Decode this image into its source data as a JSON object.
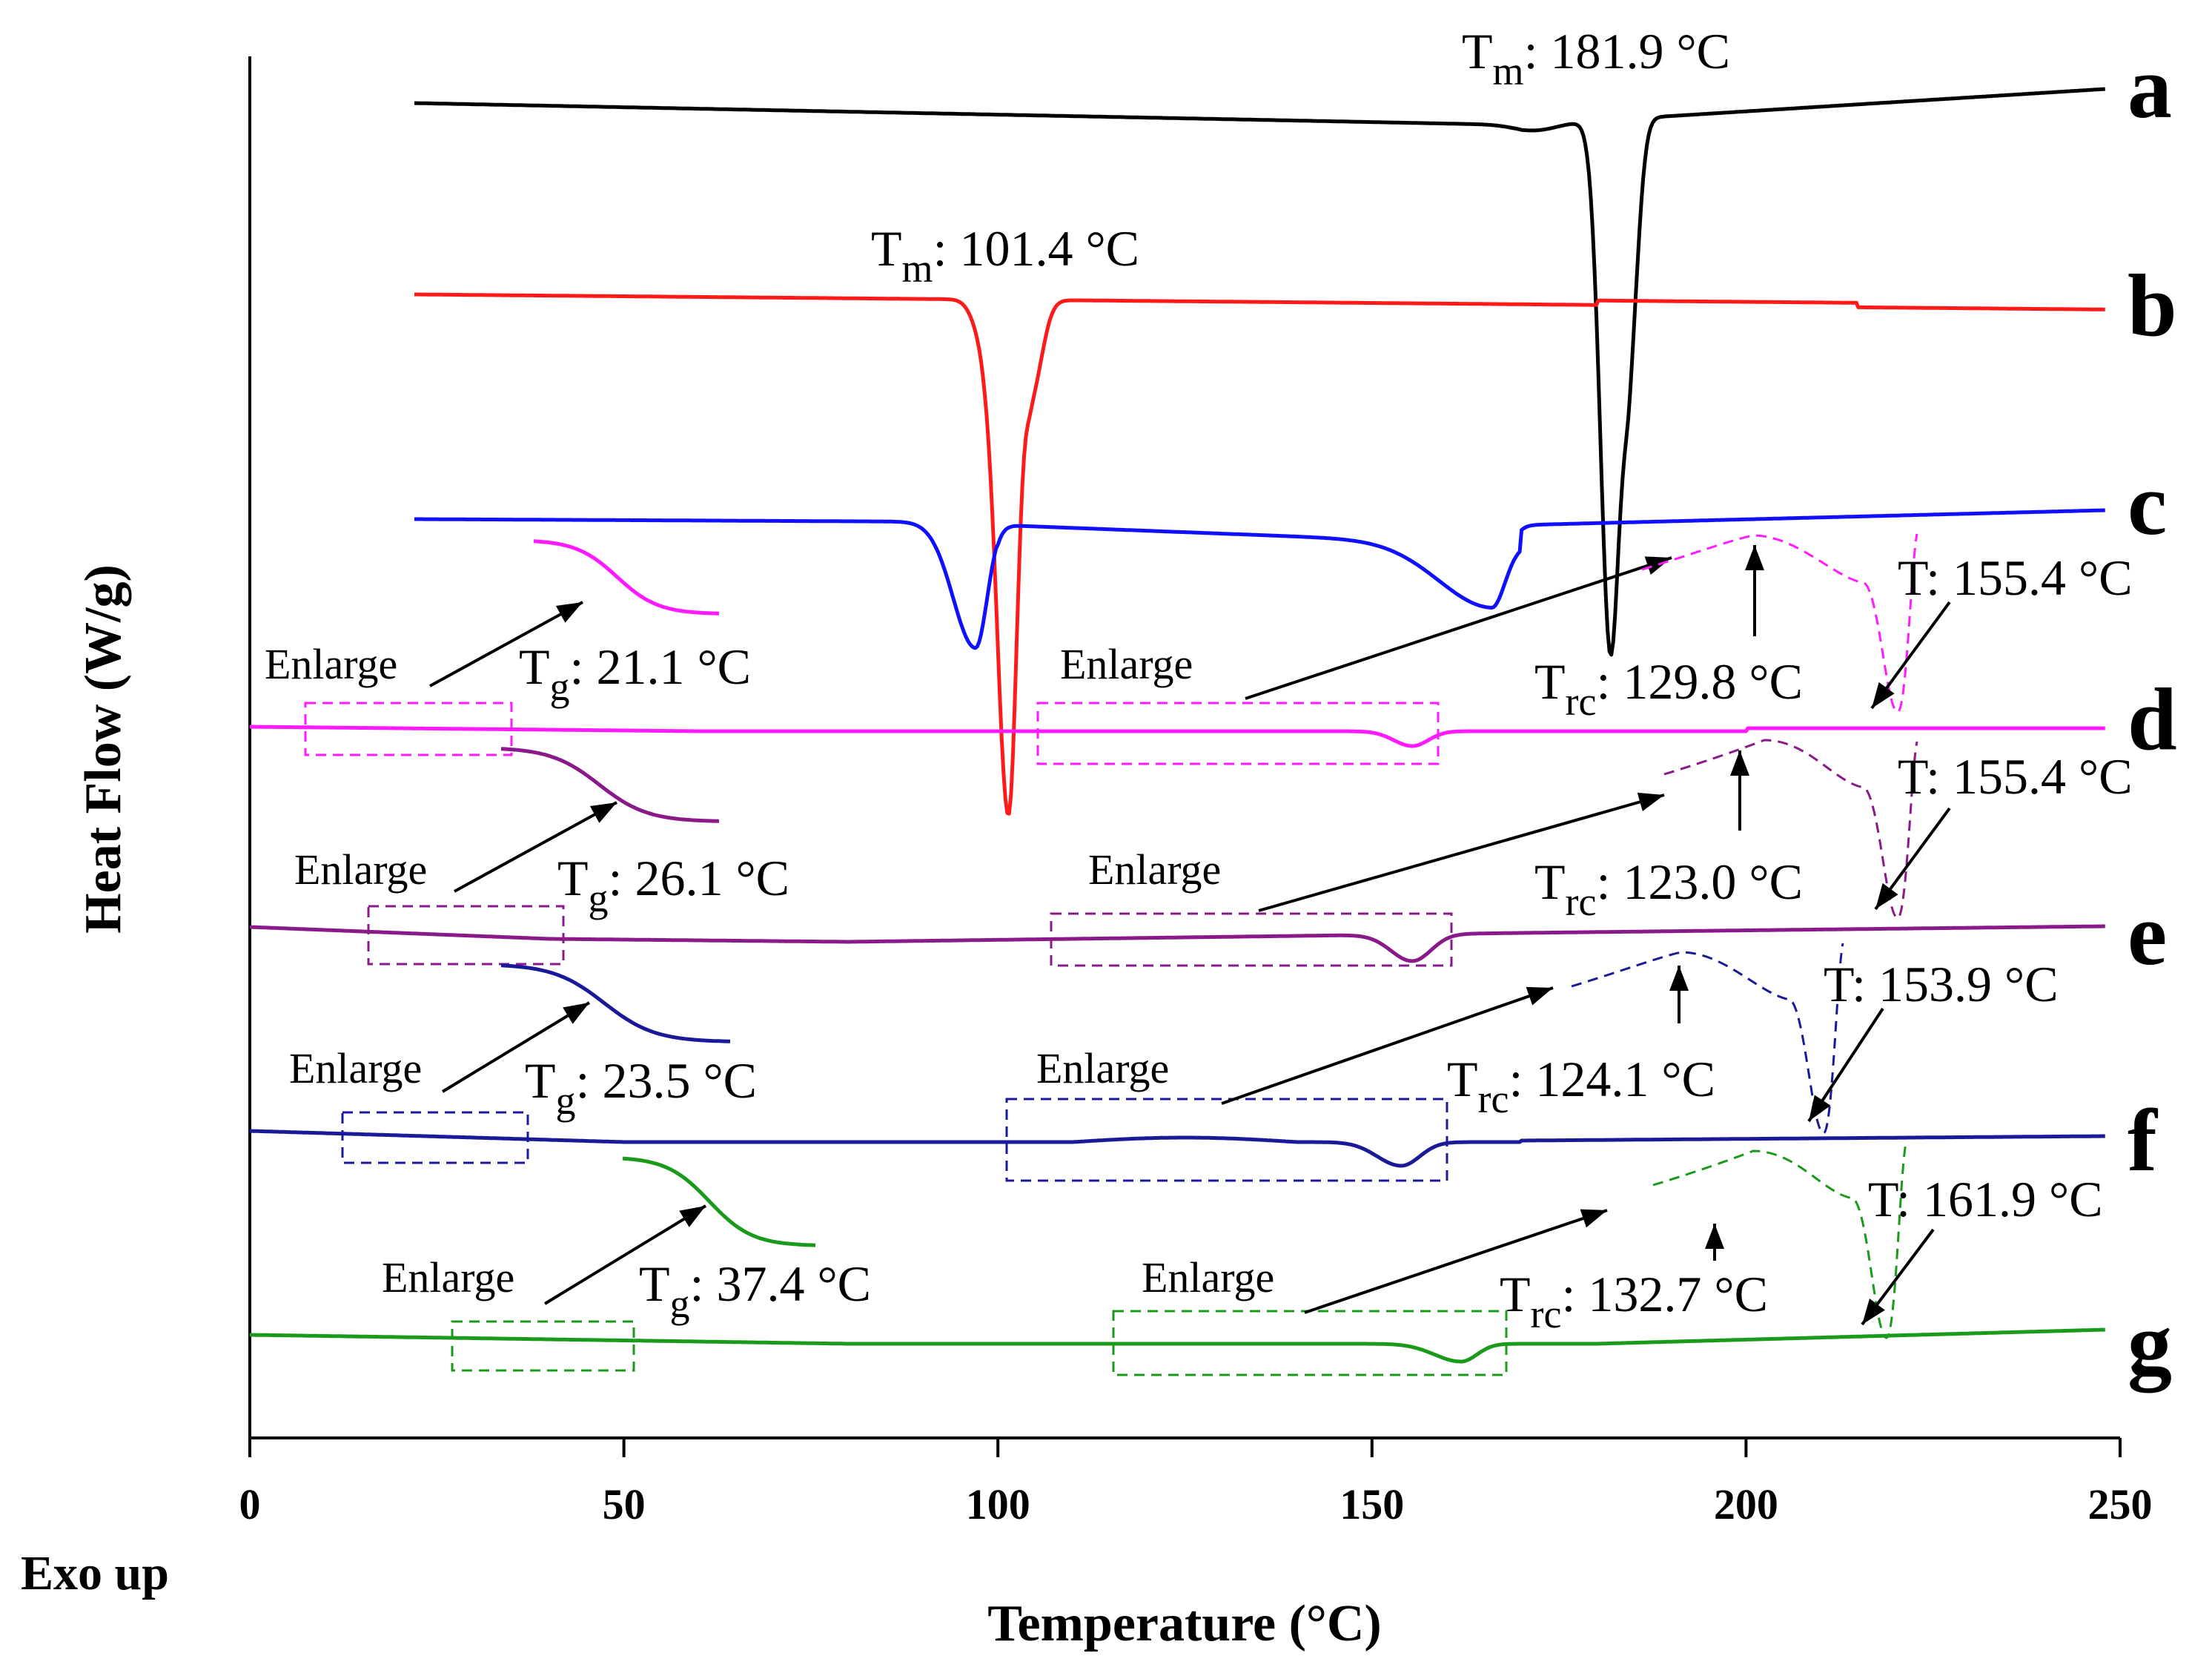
{
  "chart_data": {
    "type": "line",
    "title": "",
    "xlabel": "Temperature (°C)",
    "ylabel": "Heat Flow (W/g)",
    "corner_note": "Exo up",
    "xlim": [
      0,
      250
    ],
    "xticks": [
      "0",
      "50",
      "100",
      "150",
      "200",
      "250"
    ],
    "y_ticks_shown": false,
    "series": [
      {
        "name": "a",
        "color": "#000000",
        "x_start": 22,
        "x_end": 248,
        "events": [
          {
            "kind": "Tm",
            "label": "T",
            "sub": "m",
            "text": ": 181.9 °C",
            "temp": 181.9
          }
        ]
      },
      {
        "name": "b",
        "color": "#ff1a1a",
        "x_start": 22,
        "x_end": 248,
        "events": [
          {
            "kind": "Tm",
            "label": "T",
            "sub": "m",
            "text": ": 101.4 °C",
            "temp": 101.4
          }
        ]
      },
      {
        "name": "c",
        "color": "#1010ff",
        "x_start": 22,
        "x_end": 248,
        "events": [
          {
            "kind": "endotherm",
            "temp": 97.0
          },
          {
            "kind": "endotherm",
            "temp": 166.0
          }
        ]
      },
      {
        "name": "d",
        "color": "#ff1aff",
        "x_start": 0,
        "x_end": 248,
        "events": [
          {
            "kind": "Tg",
            "label": "T",
            "sub": "g",
            "text": ": 21.1 °C",
            "temp": 21.1
          },
          {
            "kind": "Trc",
            "label": "T",
            "sub": "rc",
            "text": ": 129.8 °C",
            "temp": 129.8
          },
          {
            "kind": "T",
            "label": "T",
            "sub": "",
            "text": ": 155.4 °C",
            "temp": 155.4
          }
        ],
        "enlarge_labels": [
          "Enlarge",
          "Enlarge"
        ]
      },
      {
        "name": "e",
        "color": "#8a1a8a",
        "x_start": 0,
        "x_end": 248,
        "events": [
          {
            "kind": "Tg",
            "label": "T",
            "sub": "g",
            "text": ": 26.1 °C",
            "temp": 26.1
          },
          {
            "kind": "Trc",
            "label": "T",
            "sub": "rc",
            "text": ": 123.0 °C",
            "temp": 123.0
          },
          {
            "kind": "T",
            "label": "T",
            "sub": "",
            "text": ": 155.4 °C",
            "temp": 155.4
          }
        ],
        "enlarge_labels": [
          "Enlarge",
          "Enlarge"
        ]
      },
      {
        "name": "f",
        "color": "#1a1a99",
        "x_start": 0,
        "x_end": 248,
        "events": [
          {
            "kind": "Tg",
            "label": "T",
            "sub": "g",
            "text": ": 23.5 °C",
            "temp": 23.5
          },
          {
            "kind": "Trc",
            "label": "T",
            "sub": "rc",
            "text": ": 124.1 °C",
            "temp": 124.1
          },
          {
            "kind": "T",
            "label": "T",
            "sub": "",
            "text": ": 153.9 °C",
            "temp": 153.9
          }
        ],
        "enlarge_labels": [
          "Enlarge",
          "Enlarge"
        ]
      },
      {
        "name": "g",
        "color": "#1a9a1a",
        "x_start": 0,
        "x_end": 248,
        "events": [
          {
            "kind": "Tg",
            "label": "T",
            "sub": "g",
            "text": ": 37.4 °C",
            "temp": 37.4
          },
          {
            "kind": "Trc",
            "label": "T",
            "sub": "rc",
            "text": ": 132.7 °C",
            "temp": 132.7
          },
          {
            "kind": "T",
            "label": "T",
            "sub": "",
            "text": ": 161.9 °C",
            "temp": 161.9
          }
        ],
        "enlarge_labels": [
          "Enlarge",
          "Enlarge"
        ]
      }
    ]
  }
}
